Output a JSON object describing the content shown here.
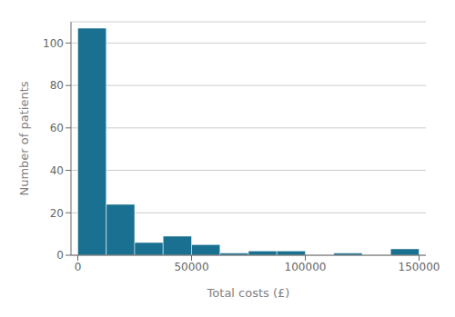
{
  "chart_data": {
    "type": "histogram",
    "xlabel": "Total costs (£)",
    "ylabel": "Number of patients",
    "bins": [
      0,
      12500,
      25000,
      37500,
      50000,
      62500,
      75000,
      87500,
      100000,
      112500,
      125000,
      137500,
      150000
    ],
    "values": [
      107,
      24,
      6,
      9,
      5,
      1,
      2,
      2,
      0,
      1,
      0,
      3
    ],
    "color": "#1a7090",
    "xlim": [
      -3000,
      153000
    ],
    "ylim": [
      0,
      110
    ],
    "xticks": [
      0,
      50000,
      100000,
      150000
    ],
    "yticks": [
      0,
      20,
      40,
      60,
      80,
      100
    ],
    "grid": true
  }
}
